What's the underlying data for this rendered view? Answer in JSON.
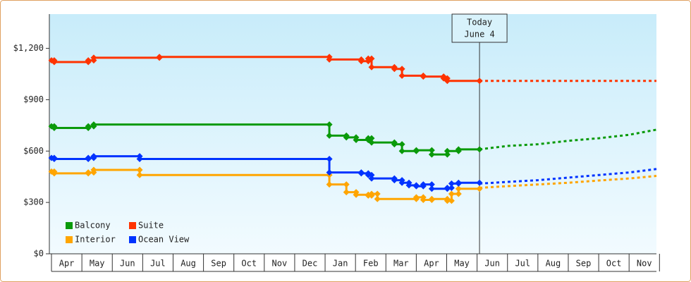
{
  "chart_data": {
    "type": "step-line",
    "xlim": [
      -0.07,
      19.9
    ],
    "xticks": [
      {
        "value": 0.5,
        "label": "Apr"
      },
      {
        "value": 1.5,
        "label": "May"
      },
      {
        "value": 2.5,
        "label": "Jun"
      },
      {
        "value": 3.5,
        "label": "Jul"
      },
      {
        "value": 4.5,
        "label": "Aug"
      },
      {
        "value": 5.5,
        "label": "Sep"
      },
      {
        "value": 6.5,
        "label": "Oct"
      },
      {
        "value": 7.5,
        "label": "Nov"
      },
      {
        "value": 8.5,
        "label": "Dec"
      },
      {
        "value": 9.5,
        "label": "Jan"
      },
      {
        "value": 10.5,
        "label": "Feb"
      },
      {
        "value": 11.5,
        "label": "Mar"
      },
      {
        "value": 12.5,
        "label": "Apr"
      },
      {
        "value": 13.5,
        "label": "May"
      },
      {
        "value": 14.5,
        "label": "Jun"
      },
      {
        "value": 15.5,
        "label": "Jul"
      },
      {
        "value": 16.5,
        "label": "Aug"
      },
      {
        "value": 17.5,
        "label": "Sep"
      },
      {
        "value": 18.5,
        "label": "Oct"
      },
      {
        "value": 19.5,
        "label": "Nov"
      }
    ],
    "ylim": [
      0,
      1400
    ],
    "yticks": [
      {
        "value": 0,
        "label": "$0"
      },
      {
        "value": 300,
        "label": "$300"
      },
      {
        "value": 600,
        "label": "$600"
      },
      {
        "value": 900,
        "label": "$900"
      },
      {
        "value": 1200,
        "label": "$1,200"
      }
    ],
    "legend": "lower left",
    "annotation": {
      "x": 14.08,
      "text": [
        "Today",
        "June 4"
      ]
    },
    "series": [
      {
        "name": "Balcony",
        "color": "#0a9a0a",
        "x": [
          0,
          0.09,
          0.09,
          1.21,
          1.21,
          1.39,
          1.39,
          9.14,
          9.14,
          9.7,
          9.7,
          10.02,
          10.02,
          10.42,
          10.42,
          10.53,
          10.53,
          11.28,
          11.28,
          11.53,
          11.53,
          12.0,
          12.0,
          12.51,
          12.51,
          13.02,
          13.02,
          13.39,
          13.39,
          14.08
        ],
        "values": [
          745,
          745,
          735,
          735,
          745,
          745,
          755,
          755,
          690,
          690,
          680,
          680,
          665,
          665,
          675,
          675,
          650,
          650,
          640,
          640,
          600,
          600,
          605,
          605,
          580,
          580,
          600,
          600,
          610,
          610
        ],
        "projection_x": [
          14.08,
          15,
          16,
          17,
          18,
          19,
          19.9
        ],
        "projection_values": [
          610,
          630,
          640,
          660,
          675,
          695,
          725
        ]
      },
      {
        "name": "Suite",
        "color": "#ff3300",
        "x": [
          0,
          0.09,
          0.09,
          1.21,
          1.21,
          1.39,
          1.39,
          3.55,
          3.55,
          9.14,
          9.14,
          10.19,
          10.19,
          10.42,
          10.42,
          10.53,
          10.53,
          11.28,
          11.28,
          11.53,
          11.53,
          12.23,
          12.23,
          12.9,
          12.9,
          13.02,
          13.02,
          14.08
        ],
        "values": [
          1130,
          1130,
          1120,
          1120,
          1130,
          1130,
          1145,
          1145,
          1150,
          1150,
          1135,
          1135,
          1125,
          1125,
          1140,
          1140,
          1090,
          1090,
          1080,
          1080,
          1040,
          1040,
          1035,
          1035,
          1025,
          1025,
          1010,
          1010
        ],
        "projection_x": [
          14.08,
          19.9
        ],
        "projection_values": [
          1010,
          1010
        ]
      },
      {
        "name": "Interior",
        "color": "#ffa500",
        "x": [
          0,
          0.09,
          0.09,
          1.21,
          1.21,
          1.39,
          1.39,
          2.9,
          2.9,
          9.14,
          9.14,
          9.7,
          9.7,
          10.02,
          10.02,
          10.42,
          10.42,
          10.53,
          10.53,
          10.72,
          10.72,
          12.0,
          12.0,
          12.23,
          12.23,
          12.51,
          12.51,
          13.02,
          13.02,
          13.16,
          13.16,
          13.39,
          13.39,
          14.08
        ],
        "values": [
          480,
          480,
          470,
          470,
          475,
          475,
          490,
          490,
          460,
          460,
          405,
          405,
          360,
          360,
          345,
          345,
          340,
          340,
          350,
          350,
          320,
          320,
          330,
          330,
          315,
          315,
          320,
          320,
          310,
          310,
          350,
          350,
          380,
          380
        ],
        "projection_x": [
          14.08,
          15,
          16,
          17,
          18,
          19,
          19.9
        ],
        "projection_values": [
          385,
          395,
          405,
          415,
          428,
          440,
          455
        ]
      },
      {
        "name": "Ocean View",
        "color": "#0033ff",
        "x": [
          0,
          0.09,
          0.09,
          1.21,
          1.21,
          1.39,
          1.39,
          2.9,
          2.9,
          9.14,
          9.14,
          10.19,
          10.19,
          10.42,
          10.42,
          10.53,
          10.53,
          11.28,
          11.28,
          11.53,
          11.53,
          11.76,
          11.76,
          12.0,
          12.0,
          12.23,
          12.23,
          12.51,
          12.51,
          13.02,
          13.02,
          13.16,
          13.16,
          13.39,
          13.39,
          14.08
        ],
        "values": [
          560,
          560,
          554,
          554,
          560,
          560,
          570,
          570,
          554,
          554,
          475,
          475,
          470,
          470,
          460,
          460,
          440,
          440,
          430,
          430,
          415,
          415,
          400,
          400,
          395,
          395,
          405,
          405,
          380,
          380,
          385,
          385,
          410,
          410,
          415,
          415
        ],
        "projection_x": [
          14.08,
          15,
          16,
          17,
          18,
          19,
          19.9
        ],
        "projection_values": [
          410,
          420,
          430,
          445,
          460,
          475,
          495
        ]
      }
    ]
  }
}
